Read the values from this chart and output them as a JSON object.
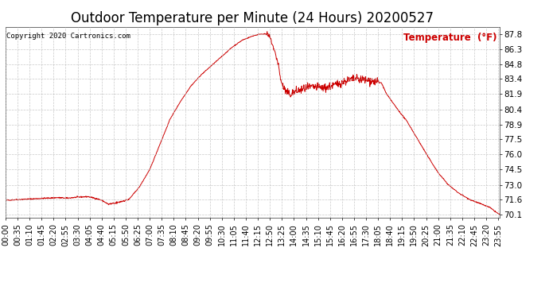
{
  "title": "Outdoor Temperature per Minute (24 Hours) 20200527",
  "copyright_text": "Copyright 2020 Cartronics.com",
  "legend_label": "Temperature  (°F)",
  "line_color": "#cc0000",
  "background_color": "#ffffff",
  "grid_color": "#bbbbbb",
  "yticks": [
    70.1,
    71.6,
    73.0,
    74.5,
    76.0,
    77.5,
    78.9,
    80.4,
    81.9,
    83.4,
    84.8,
    86.3,
    87.8
  ],
  "ylim": [
    69.8,
    88.5
  ],
  "num_minutes": 1440,
  "xtick_labels": [
    "00:00",
    "00:35",
    "01:10",
    "01:45",
    "02:20",
    "02:55",
    "03:30",
    "04:05",
    "04:40",
    "05:15",
    "05:50",
    "06:25",
    "07:00",
    "07:35",
    "08:10",
    "08:45",
    "09:20",
    "09:55",
    "10:30",
    "11:05",
    "11:40",
    "12:15",
    "12:50",
    "13:25",
    "14:00",
    "14:35",
    "15:10",
    "15:45",
    "16:20",
    "16:55",
    "17:30",
    "18:05",
    "18:40",
    "19:15",
    "19:50",
    "20:25",
    "21:00",
    "21:35",
    "22:10",
    "22:45",
    "23:20",
    "23:55"
  ],
  "title_fontsize": 12,
  "axis_fontsize": 7.5,
  "legend_fontsize": 8.5,
  "keypoints_t": [
    0,
    30,
    60,
    90,
    120,
    150,
    180,
    210,
    240,
    260,
    280,
    300,
    320,
    340,
    360,
    390,
    420,
    450,
    480,
    510,
    540,
    570,
    600,
    630,
    660,
    690,
    720,
    740,
    755,
    760,
    770,
    780,
    795,
    800,
    810,
    820,
    830,
    840,
    860,
    880,
    900,
    930,
    960,
    990,
    1020,
    1050,
    1080,
    1095,
    1110,
    1140,
    1170,
    1200,
    1230,
    1260,
    1290,
    1320,
    1350,
    1380,
    1410,
    1430,
    1439
  ],
  "keypoints_v": [
    71.5,
    71.55,
    71.6,
    71.65,
    71.7,
    71.75,
    71.7,
    71.8,
    71.85,
    71.7,
    71.5,
    71.1,
    71.2,
    71.4,
    71.6,
    72.8,
    74.5,
    77.0,
    79.5,
    81.2,
    82.7,
    83.8,
    84.7,
    85.6,
    86.5,
    87.2,
    87.6,
    87.78,
    87.8,
    87.78,
    87.5,
    86.5,
    84.8,
    83.5,
    82.5,
    82.0,
    81.9,
    82.1,
    82.3,
    82.5,
    82.6,
    82.5,
    82.8,
    83.2,
    83.4,
    83.3,
    83.1,
    83.0,
    81.9,
    80.5,
    79.2,
    77.5,
    75.8,
    74.2,
    73.0,
    72.2,
    71.6,
    71.2,
    70.8,
    70.3,
    70.1
  ]
}
